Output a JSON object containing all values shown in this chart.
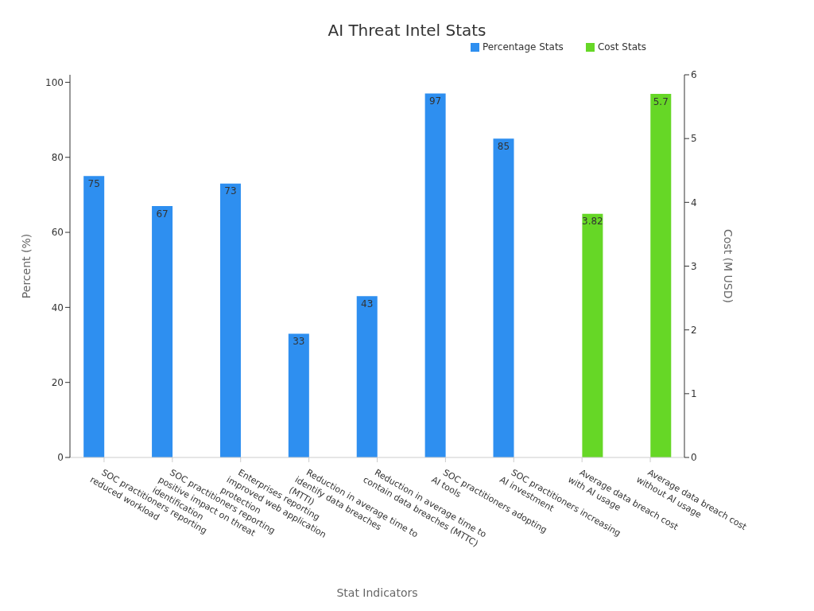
{
  "chart_data": {
    "type": "bar",
    "title": "AI Threat Intel Stats",
    "xlabel": "Stat Indicators",
    "ylabel": "Percent (%)",
    "y2label": "Cost (M USD)",
    "categories": [
      "SOC practitioners reporting reduced workload",
      "SOC practitioners reporting positive impact on threat identification",
      "Enterprises reporting improved web application protection",
      "Reduction in average time to identify data breaches (MTTI)",
      "Reduction in average time to contain data breaches (MTTC)",
      "SOC practitioners adopting AI tools",
      "SOC practitioners increasing AI investment",
      "Average data breach cost with AI usage",
      "Average data breach cost without AI usage"
    ],
    "series": [
      {
        "name": "Percentage Stats",
        "color": "#2e8ff0",
        "values": [
          75,
          67,
          73,
          33,
          43,
          97,
          85,
          null,
          null
        ]
      },
      {
        "name": "Cost Stats",
        "color": "#66d726",
        "axis": "y2",
        "values": [
          null,
          null,
          null,
          null,
          null,
          null,
          null,
          3.82,
          5.7
        ]
      }
    ],
    "ylim": [
      0,
      102
    ],
    "yticks": [
      0,
      20,
      40,
      60,
      80,
      100
    ],
    "y2lim": [
      0,
      6
    ],
    "y2ticks": [
      0,
      1,
      2,
      3,
      4,
      5,
      6
    ],
    "data_labels": true,
    "legend": "top right",
    "grid": false
  }
}
